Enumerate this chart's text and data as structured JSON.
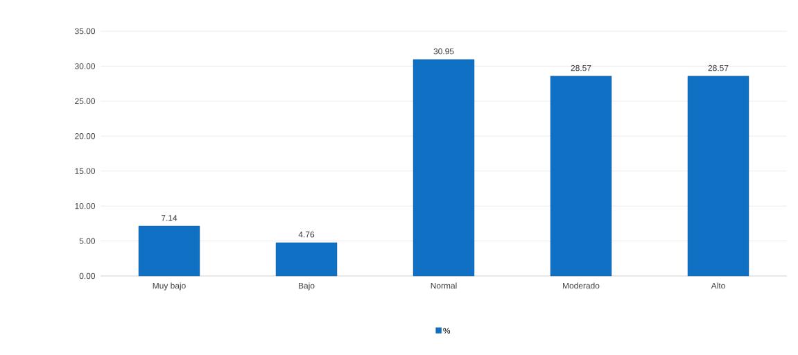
{
  "chart_data": {
    "type": "bar",
    "categories": [
      "Muy bajo",
      "Bajo",
      "Normal",
      "Moderado",
      "Alto"
    ],
    "series": [
      {
        "name": "%",
        "color": "#1071c4",
        "values": [
          7.14,
          4.76,
          30.95,
          28.57,
          28.57
        ]
      }
    ],
    "ylim": [
      0,
      35
    ],
    "yticks": [
      {
        "value": 0,
        "label": "0.00"
      },
      {
        "value": 5,
        "label": "5.00"
      },
      {
        "value": 10,
        "label": "10.00"
      },
      {
        "value": 15,
        "label": "15.00"
      },
      {
        "value": 20,
        "label": "20.00"
      },
      {
        "value": 25,
        "label": "25.00"
      },
      {
        "value": 30,
        "label": "30.00"
      },
      {
        "value": 35,
        "label": "35.00"
      }
    ],
    "grid": "y",
    "legend": "bottom",
    "data_labels": true
  }
}
